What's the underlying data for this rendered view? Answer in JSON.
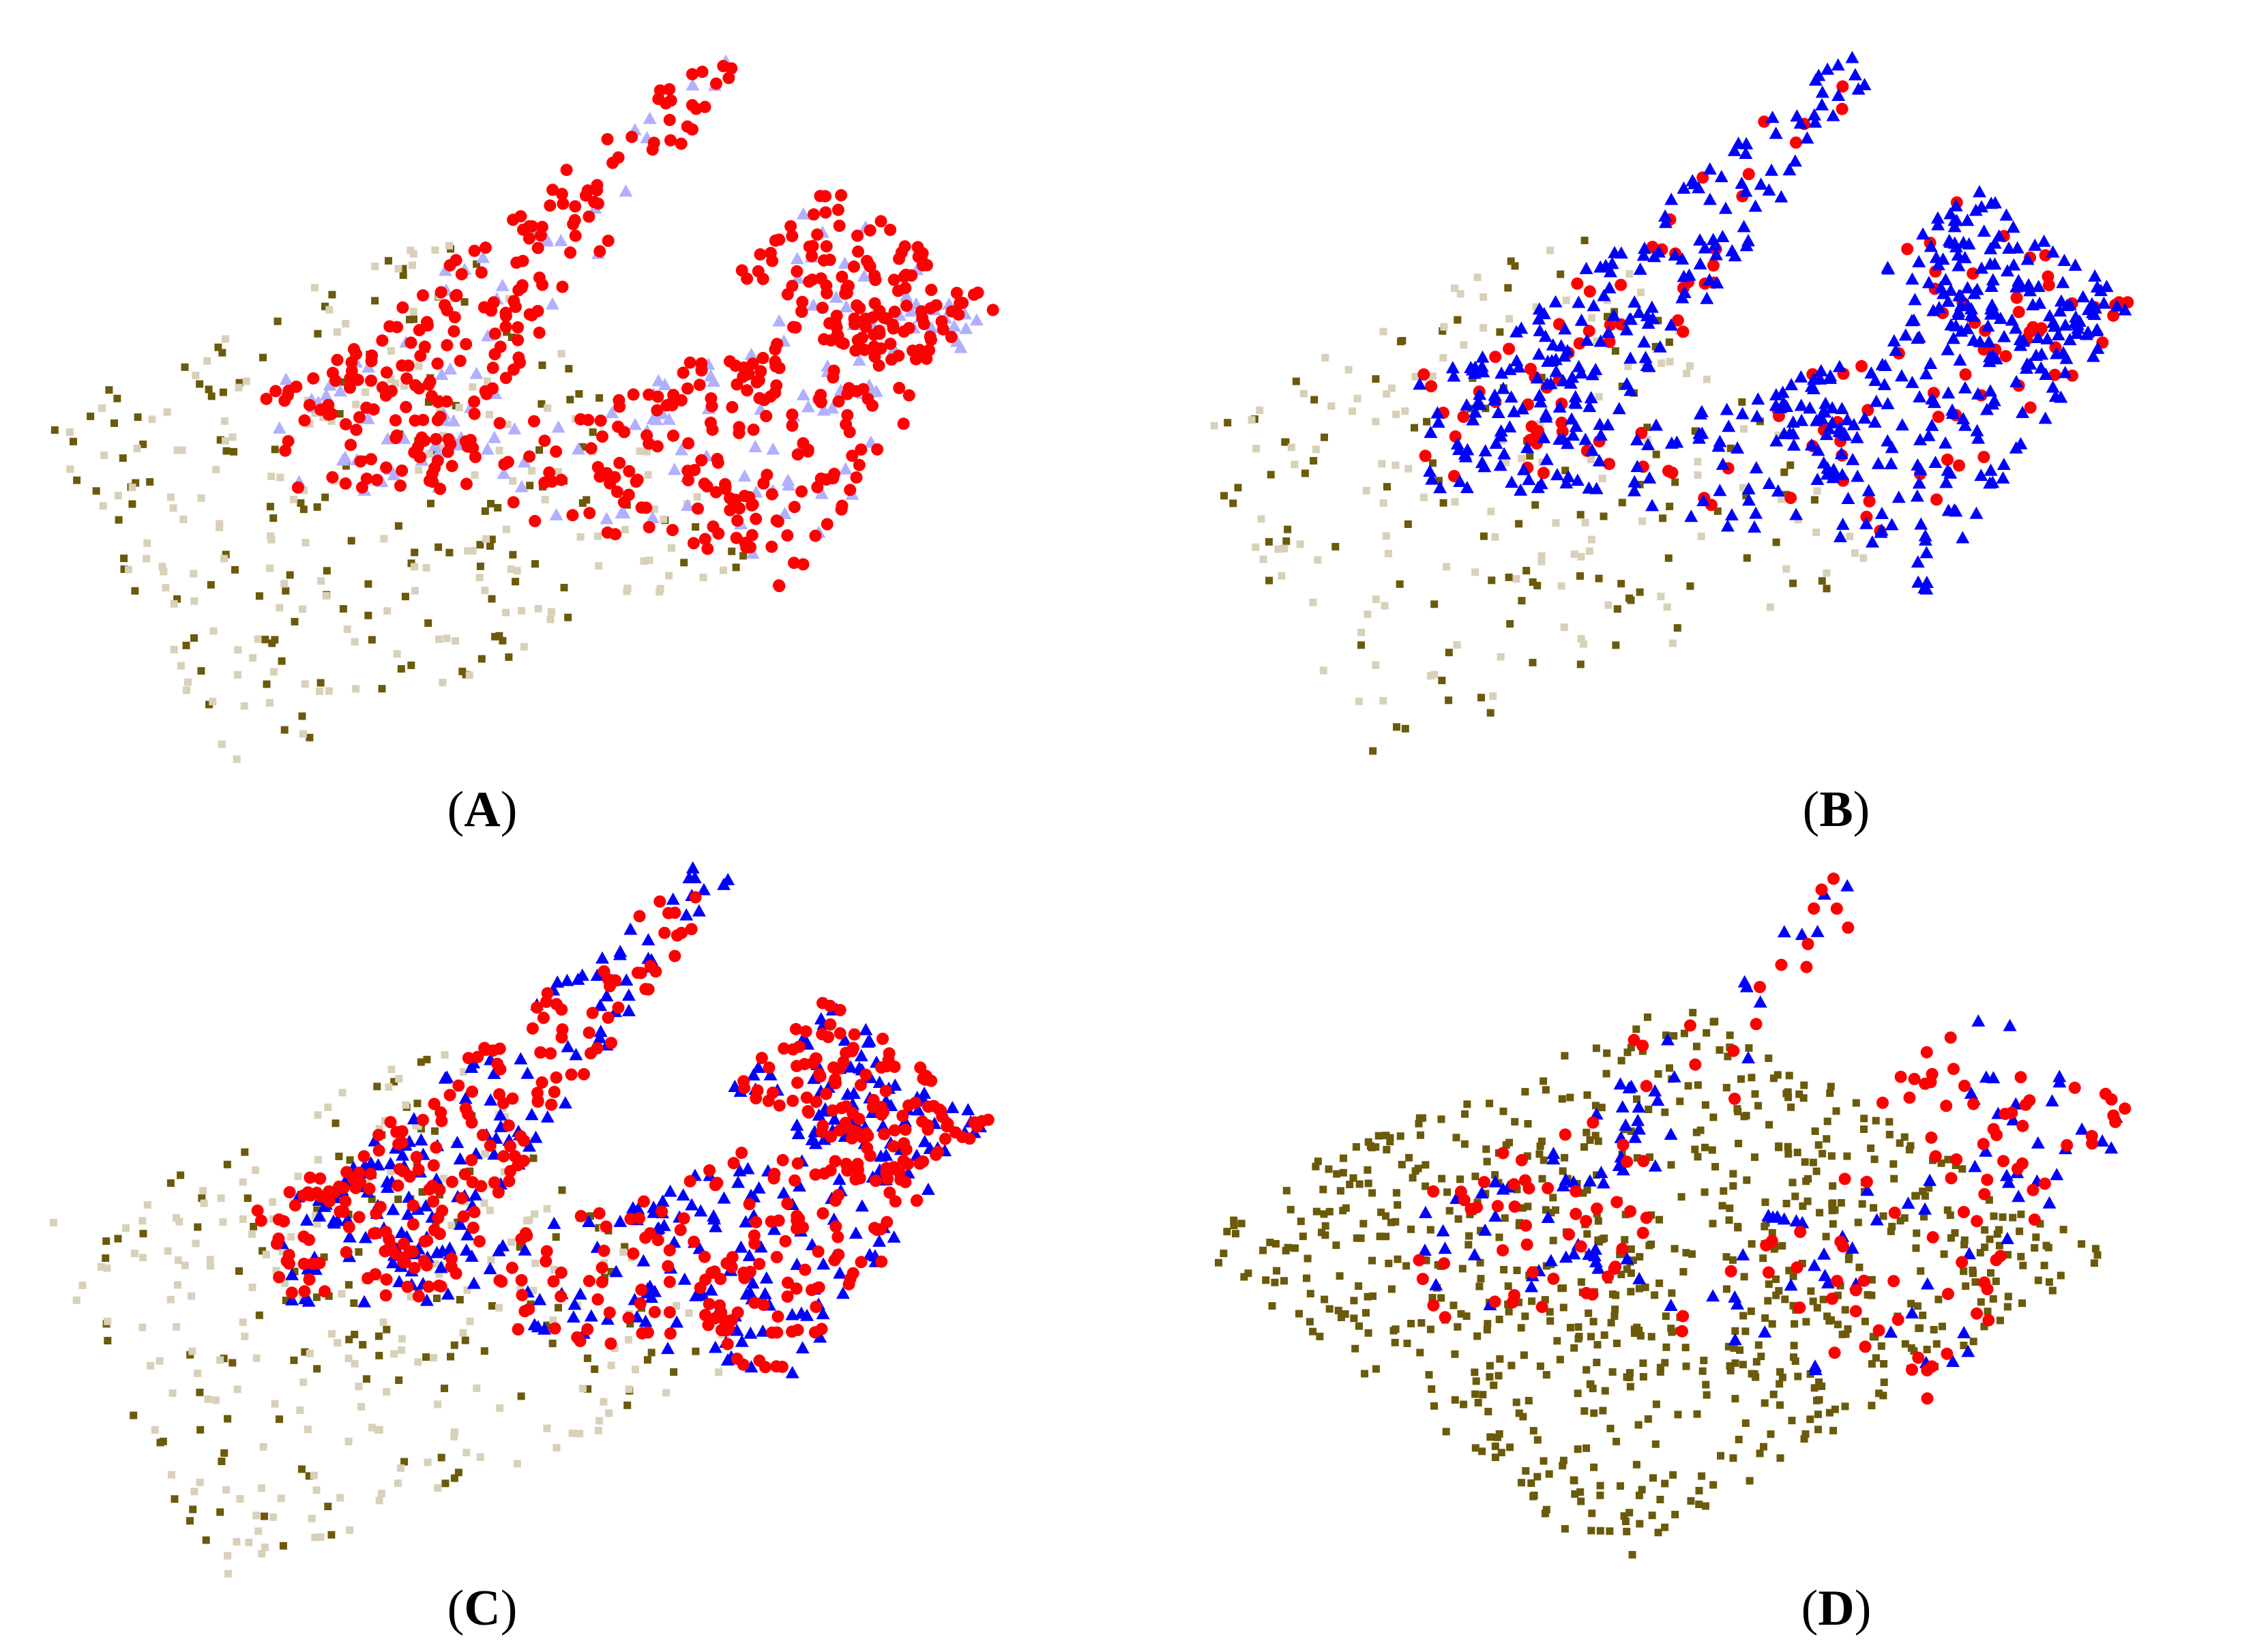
{
  "figure": {
    "panels": [
      {
        "id": "A",
        "caption_open": "(",
        "caption_letter": "A",
        "caption_close": ")"
      },
      {
        "id": "B",
        "caption_open": "(",
        "caption_letter": "B",
        "caption_close": ")"
      },
      {
        "id": "C",
        "caption_open": "(",
        "caption_letter": "C",
        "caption_close": ")"
      },
      {
        "id": "D",
        "caption_open": "(",
        "caption_letter": "D",
        "caption_close": ")"
      }
    ]
  },
  "colors": {
    "red_circle": "#ff0000",
    "blue_triangle": "#0000ff",
    "faint_triangle": "#b0b0ff",
    "olive_square": "#6b5a0a",
    "beige_square": "#d8d0b8",
    "background": "#ffffff"
  },
  "chart_data": [
    {
      "type": "scatter",
      "panel": "A",
      "axes_visible": false,
      "grid": false,
      "legend": "none",
      "series": [
        {
          "marker": "circle",
          "color": "red",
          "approx_points": 520
        },
        {
          "marker": "triangle",
          "color": "faint-blue",
          "approx_points": 160
        },
        {
          "marker": "square",
          "color": "olive",
          "approx_points": 150
        },
        {
          "marker": "square",
          "color": "beige",
          "approx_points": 170
        }
      ]
    },
    {
      "type": "scatter",
      "panel": "B",
      "axes_visible": false,
      "grid": false,
      "legend": "none",
      "series": [
        {
          "marker": "triangle",
          "color": "blue",
          "approx_points": 560
        },
        {
          "marker": "circle",
          "color": "red",
          "approx_points": 130
        },
        {
          "marker": "square",
          "color": "olive",
          "approx_points": 110
        },
        {
          "marker": "square",
          "color": "beige",
          "approx_points": 130
        }
      ]
    },
    {
      "type": "scatter",
      "panel": "C",
      "axes_visible": false,
      "grid": false,
      "legend": "none",
      "series": [
        {
          "marker": "circle",
          "color": "red",
          "approx_points": 480
        },
        {
          "marker": "triangle",
          "color": "blue",
          "approx_points": 380
        },
        {
          "marker": "square",
          "color": "olive",
          "approx_points": 130
        },
        {
          "marker": "square",
          "color": "beige",
          "approx_points": 200
        }
      ]
    },
    {
      "type": "scatter",
      "panel": "D",
      "axes_visible": false,
      "grid": false,
      "legend": "none",
      "series": [
        {
          "marker": "square",
          "color": "olive",
          "approx_points": 760
        },
        {
          "marker": "circle",
          "color": "red",
          "approx_points": 150
        },
        {
          "marker": "triangle",
          "color": "blue",
          "approx_points": 130
        }
      ]
    }
  ]
}
